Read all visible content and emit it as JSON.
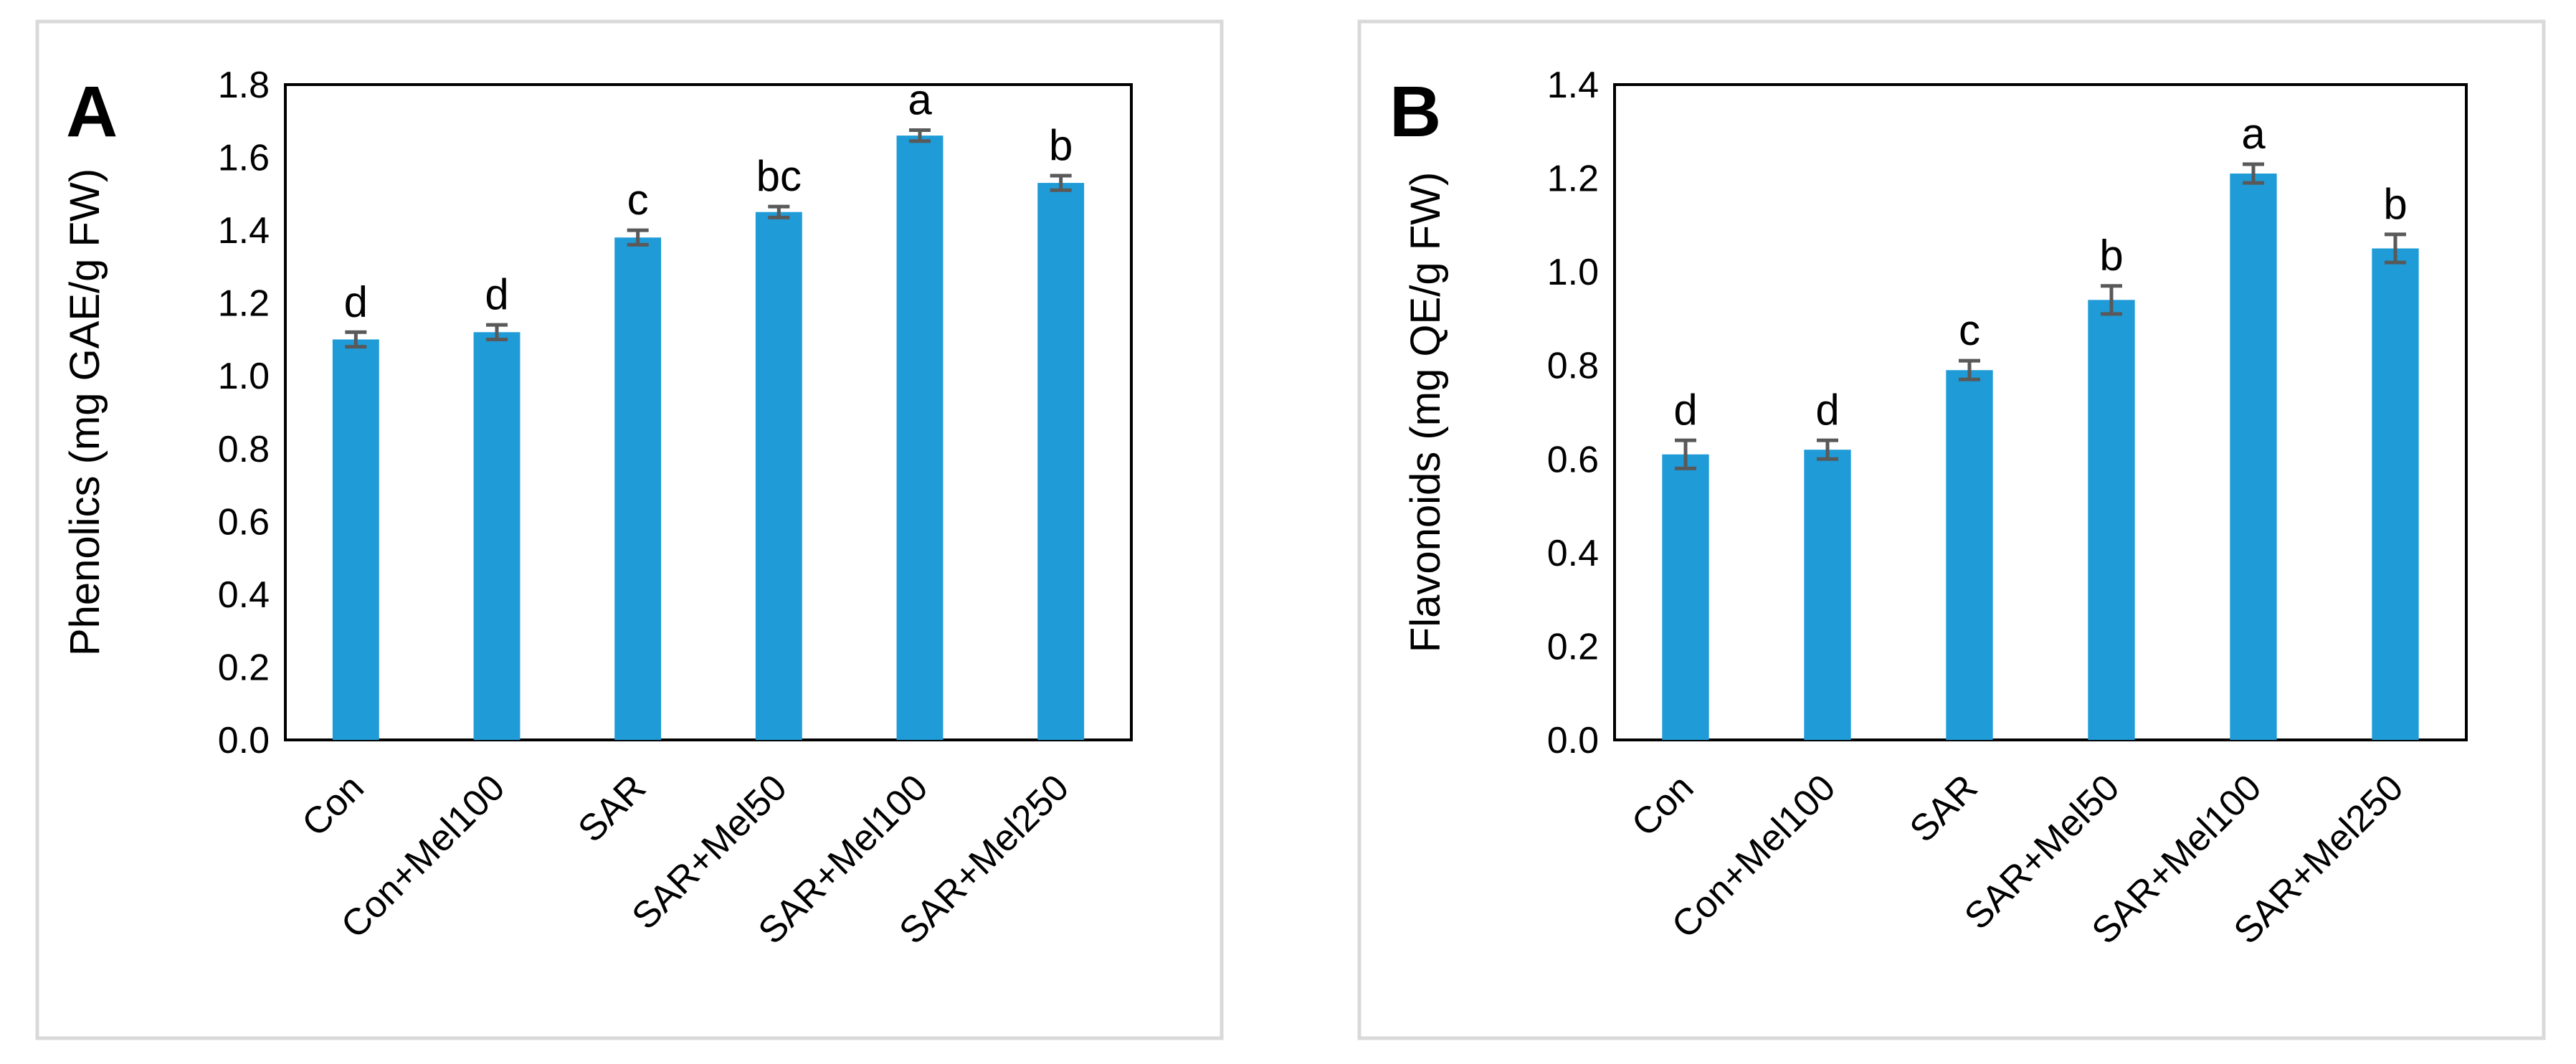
{
  "figure": {
    "bar_color": "#1f9bd7",
    "error_bar_color": "#595959"
  },
  "chart_data": [
    {
      "type": "bar",
      "panel_label": "A",
      "title": "",
      "xlabel": "",
      "ylabel": "Phenolics (mg GAE/g FW)",
      "ylim": [
        0.0,
        1.8
      ],
      "yticks": [
        "0.0",
        "0.2",
        "0.4",
        "0.6",
        "0.8",
        "1.0",
        "1.2",
        "1.4",
        "1.6",
        "1.8"
      ],
      "ytick_values": [
        0.0,
        0.2,
        0.4,
        0.6,
        0.8,
        1.0,
        1.2,
        1.4,
        1.6,
        1.8
      ],
      "categories": [
        "Con",
        "Con+Mel100",
        "SAR",
        "SAR+Mel50",
        "SAR+Mel100",
        "SAR+Mel250"
      ],
      "values": [
        1.1,
        1.12,
        1.38,
        1.45,
        1.66,
        1.53
      ],
      "errors": [
        0.02,
        0.02,
        0.02,
        0.015,
        0.015,
        0.02
      ],
      "significance": [
        "d",
        "d",
        "c",
        "bc",
        "a",
        "b"
      ],
      "grid": false
    },
    {
      "type": "bar",
      "panel_label": "B",
      "title": "",
      "xlabel": "",
      "ylabel": "Flavonoids (mg QE/g FW)",
      "ylim": [
        0.0,
        1.4
      ],
      "yticks": [
        "0.0",
        "0.2",
        "0.4",
        "0.6",
        "0.8",
        "1.0",
        "1.2",
        "1.4"
      ],
      "ytick_values": [
        0.0,
        0.2,
        0.4,
        0.6,
        0.8,
        1.0,
        1.2,
        1.4
      ],
      "categories": [
        "Con",
        "Con+Mel100",
        "SAR",
        "SAR+Mel50",
        "SAR+Mel100",
        "SAR+Mel250"
      ],
      "values": [
        0.61,
        0.62,
        0.79,
        0.94,
        1.21,
        1.05
      ],
      "errors": [
        0.03,
        0.02,
        0.02,
        0.03,
        0.02,
        0.03
      ],
      "significance": [
        "d",
        "d",
        "c",
        "b",
        "a",
        "b"
      ],
      "grid": false
    }
  ]
}
